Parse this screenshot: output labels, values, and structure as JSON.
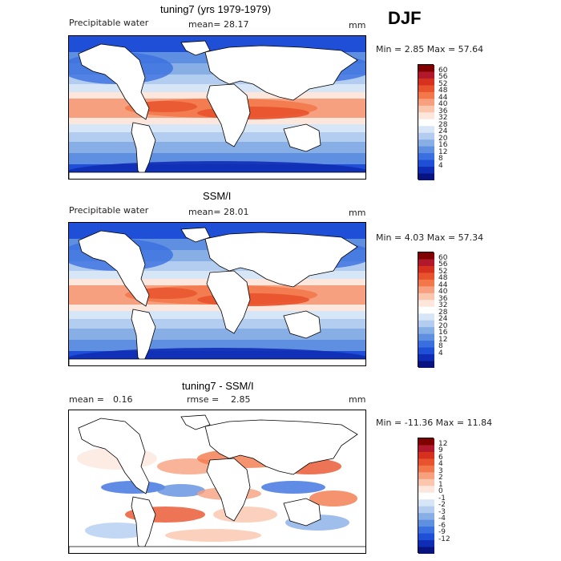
{
  "season": "DJF",
  "panels": [
    {
      "title": "tuning7 (yrs 1979-1979)",
      "variable": "Precipitable water",
      "stat_label": "mean=",
      "stat_value": "28.17",
      "units": "mm",
      "range": "Min =    2.85 Max =  57.64",
      "colorbar_ticks": [
        "60",
        "56",
        "52",
        "48",
        "44",
        "40",
        "36",
        "32",
        "28",
        "24",
        "20",
        "16",
        "12",
        "8",
        "4"
      ],
      "colors": [
        "#800000",
        "#b2182b",
        "#d6301e",
        "#e8522c",
        "#f2784b",
        "#f7a07f",
        "#fac6ae",
        "#fde7dc",
        "#ffffff",
        "#d7e6f7",
        "#b3cdf0",
        "#88aee6",
        "#5f8fe0",
        "#3a6fe0",
        "#1f4fd6",
        "#0f2cb5",
        "#08137f"
      ]
    },
    {
      "title": "SSM/I",
      "variable": "Precipitable water",
      "stat_label": "mean=",
      "stat_value": "28.01",
      "units": "mm",
      "range": "Min =    4.03 Max =  57.34",
      "colorbar_ticks": [
        "60",
        "56",
        "52",
        "48",
        "44",
        "40",
        "36",
        "32",
        "28",
        "24",
        "20",
        "16",
        "12",
        "8",
        "4"
      ],
      "colors": [
        "#800000",
        "#b2182b",
        "#d6301e",
        "#e8522c",
        "#f2784b",
        "#f7a07f",
        "#fac6ae",
        "#fde7dc",
        "#ffffff",
        "#d7e6f7",
        "#b3cdf0",
        "#88aee6",
        "#5f8fe0",
        "#3a6fe0",
        "#1f4fd6",
        "#0f2cb5",
        "#08137f"
      ]
    },
    {
      "title": "tuning7 - SSM/I",
      "variable": "",
      "stat_label": "mean =",
      "stat_value": "0.16",
      "stat2_label": "rmse =",
      "stat2_value": "2.85",
      "units": "mm",
      "range": "Min = -11.36 Max =  11.84",
      "colorbar_ticks": [
        "12",
        "9",
        "6",
        "4",
        "3",
        "2",
        "1",
        "0",
        "-1",
        "-2",
        "-3",
        "-4",
        "-6",
        "-9",
        "-12"
      ],
      "colors": [
        "#800000",
        "#b2182b",
        "#d6301e",
        "#e8522c",
        "#f2784b",
        "#f7a07f",
        "#fac6ae",
        "#fde7dc",
        "#ffffff",
        "#d7e6f7",
        "#b3cdf0",
        "#88aee6",
        "#5f8fe0",
        "#3a6fe0",
        "#1f4fd6",
        "#0f2cb5",
        "#08137f"
      ]
    }
  ]
}
